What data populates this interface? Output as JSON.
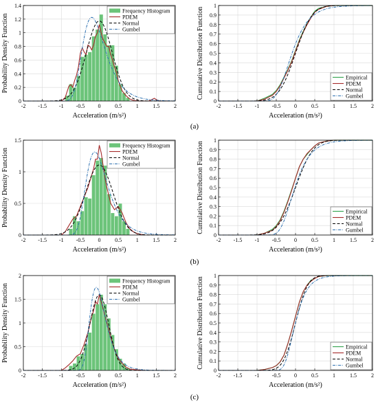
{
  "panels": [
    {
      "label": "(a)"
    },
    {
      "label": "(b)"
    },
    {
      "label": "(c)"
    }
  ],
  "colors": {
    "histogram_fill": "#6cc47a",
    "histogram_edge": "#4a9a58",
    "pdem": "#a52a2a",
    "normal": "#000000",
    "gumbel": "#2b6fb0",
    "empirical": "#3aa655",
    "grid": "#d9d9d9"
  },
  "chart_data": [
    {
      "type": "bar",
      "panel": "a",
      "xlabel": "Acceleration (m/s²)",
      "ylabel": "Probability Density Function",
      "xlim": [
        -2,
        2
      ],
      "ylim": [
        0,
        1.4
      ],
      "xticks": [
        "-2",
        "-1.5",
        "-1",
        "-0.5",
        "0",
        "0.5",
        "1",
        "1.5",
        "2"
      ],
      "yticks": [
        "0",
        "0.2",
        "0.4",
        "0.6",
        "0.8",
        "1",
        "1.2",
        "1.4"
      ],
      "grid": true,
      "legend_position": "top-right",
      "legend": [
        "Frequency Histogram",
        "PDEM",
        "Normal",
        "Gumbel"
      ],
      "histogram": {
        "bin_starts": [
          -0.9,
          -0.8,
          -0.7,
          -0.6,
          -0.5,
          -0.4,
          -0.3,
          -0.2,
          -0.1,
          0.0,
          0.1,
          0.2,
          0.3,
          0.4,
          0.5,
          0.6,
          0.7
        ],
        "bin_width": 0.1,
        "values": [
          0.08,
          0.25,
          0.2,
          0.37,
          0.65,
          0.68,
          0.72,
          0.95,
          1.05,
          1.27,
          0.98,
          0.82,
          0.82,
          0.52,
          0.25,
          0.12,
          0.05
        ]
      },
      "series": [
        {
          "name": "PDEM",
          "x": [
            -1.0,
            -0.9,
            -0.8,
            -0.75,
            -0.7,
            -0.65,
            -0.6,
            -0.55,
            -0.5,
            -0.45,
            -0.4,
            -0.35,
            -0.3,
            -0.25,
            -0.2,
            -0.15,
            -0.1,
            -0.05,
            0.0,
            0.05,
            0.1,
            0.15,
            0.2,
            0.25,
            0.3,
            0.35,
            0.4,
            0.45,
            0.5,
            0.55,
            0.6,
            0.7,
            0.8,
            0.9,
            1.0,
            1.3,
            1.45,
            1.5,
            1.6,
            1.8
          ],
          "y": [
            0.0,
            0.05,
            0.22,
            0.24,
            0.2,
            0.3,
            0.38,
            0.5,
            0.7,
            0.78,
            0.72,
            0.68,
            0.82,
            0.8,
            0.75,
            0.82,
            0.95,
            1.0,
            1.12,
            1.0,
            0.9,
            0.85,
            0.8,
            0.8,
            0.68,
            0.6,
            0.5,
            0.42,
            0.3,
            0.22,
            0.15,
            0.08,
            0.03,
            0.01,
            0.0,
            0.0,
            0.04,
            0.02,
            0.0,
            0.0
          ]
        },
        {
          "name": "Normal",
          "mean": 0.0,
          "std": 0.34
        },
        {
          "name": "Gumbel",
          "mode": -0.2,
          "scale": 0.3
        }
      ]
    },
    {
      "type": "line",
      "panel": "a",
      "xlabel": "Acceleration (m/s²)",
      "ylabel": "Cumulative Distribution Function",
      "xlim": [
        -2,
        2
      ],
      "ylim": [
        0,
        1
      ],
      "xticks": [
        "-2",
        "-1.5",
        "-1",
        "-0.5",
        "0",
        "0.5",
        "1",
        "1.5",
        "2"
      ],
      "yticks": [
        "0",
        "0.1",
        "0.2",
        "0.3",
        "0.4",
        "0.5",
        "0.6",
        "0.7",
        "0.8",
        "0.9",
        "1"
      ],
      "grid": true,
      "legend_position": "bottom-right",
      "legend": [
        "Empirical",
        "PDEM",
        "Normal",
        "Gumbel"
      ],
      "series": [
        {
          "name": "Empirical",
          "x": [
            -1.0,
            -0.8,
            -0.6,
            -0.5,
            -0.4,
            -0.3,
            -0.2,
            -0.1,
            0.0,
            0.1,
            0.2,
            0.3,
            0.4,
            0.5,
            0.6,
            0.8,
            1.0,
            1.5,
            2.0
          ],
          "y": [
            0.0,
            0.03,
            0.07,
            0.11,
            0.17,
            0.25,
            0.33,
            0.42,
            0.53,
            0.64,
            0.73,
            0.81,
            0.88,
            0.94,
            0.97,
            0.99,
            1.0,
            1.0,
            1.0
          ]
        },
        {
          "name": "PDEM",
          "x": [
            -1.0,
            -0.8,
            -0.6,
            -0.5,
            -0.4,
            -0.3,
            -0.2,
            -0.1,
            0.0,
            0.1,
            0.2,
            0.3,
            0.4,
            0.5,
            0.6,
            0.8,
            1.0,
            1.5,
            2.0
          ],
          "y": [
            0.0,
            0.02,
            0.06,
            0.1,
            0.16,
            0.24,
            0.32,
            0.41,
            0.52,
            0.63,
            0.72,
            0.8,
            0.87,
            0.93,
            0.96,
            0.99,
            1.0,
            1.0,
            1.0
          ]
        },
        {
          "name": "Normal",
          "mean": 0.0,
          "std": 0.34
        },
        {
          "name": "Gumbel",
          "mode": -0.2,
          "scale": 0.3
        }
      ]
    },
    {
      "type": "bar",
      "panel": "b",
      "xlabel": "Acceleration (m/s²)",
      "ylabel": "Probability Density Function",
      "xlim": [
        -2,
        2
      ],
      "ylim": [
        0,
        1.5
      ],
      "xticks": [
        "-2",
        "-1.5",
        "-1",
        "-0.5",
        "0",
        "0.5",
        "1",
        "1.5",
        "2"
      ],
      "yticks": [
        "0",
        "0.5",
        "1",
        "1.5"
      ],
      "grid": true,
      "legend_position": "top-right",
      "legend": [
        "Frequency Histogram",
        "PDEM",
        "Normal",
        "Gumbel"
      ],
      "histogram": {
        "bin_starts": [
          -0.8,
          -0.7,
          -0.6,
          -0.5,
          -0.4,
          -0.3,
          -0.2,
          -0.1,
          0.0,
          0.1,
          0.2,
          0.3,
          0.4,
          0.5,
          0.6,
          0.7
        ],
        "bin_width": 0.1,
        "values": [
          0.1,
          0.3,
          0.22,
          0.38,
          0.6,
          0.58,
          0.95,
          1.18,
          1.22,
          1.1,
          0.65,
          0.35,
          0.3,
          0.5,
          0.22,
          0.1
        ]
      },
      "series": [
        {
          "name": "PDEM",
          "x": [
            -1.0,
            -0.9,
            -0.8,
            -0.7,
            -0.6,
            -0.5,
            -0.4,
            -0.3,
            -0.2,
            -0.15,
            -0.1,
            -0.05,
            0.0,
            0.05,
            0.1,
            0.15,
            0.2,
            0.3,
            0.4,
            0.5,
            0.6,
            0.7,
            0.8,
            0.9,
            1.0,
            1.2
          ],
          "y": [
            0.0,
            0.05,
            0.15,
            0.25,
            0.3,
            0.45,
            0.6,
            0.75,
            0.95,
            1.05,
            1.2,
            1.2,
            1.42,
            1.3,
            1.1,
            0.9,
            0.75,
            0.5,
            0.4,
            0.45,
            0.35,
            0.2,
            0.1,
            0.05,
            0.02,
            0.0
          ]
        },
        {
          "name": "Normal",
          "mean": 0.0,
          "std": 0.36
        },
        {
          "name": "Gumbel",
          "mode": -0.12,
          "scale": 0.28
        }
      ]
    },
    {
      "type": "line",
      "panel": "b",
      "xlabel": "Acceleration (m/s²)",
      "ylabel": "Cumulative Distribution Function",
      "xlim": [
        -2,
        2
      ],
      "ylim": [
        0,
        1
      ],
      "xticks": [
        "-2",
        "-1.5",
        "-1",
        "-0.5",
        "0",
        "0.5",
        "1",
        "1.5",
        "2"
      ],
      "yticks": [
        "0",
        "0.1",
        "0.2",
        "0.3",
        "0.4",
        "0.5",
        "0.6",
        "0.7",
        "0.8",
        "0.9",
        "1"
      ],
      "grid": true,
      "legend_position": "bottom-right",
      "legend": [
        "Empirical",
        "PDEM",
        "Normal",
        "Gumbel"
      ],
      "series": [
        {
          "name": "Empirical",
          "x": [
            -1.0,
            -0.8,
            -0.6,
            -0.5,
            -0.4,
            -0.3,
            -0.2,
            -0.1,
            0.0,
            0.1,
            0.2,
            0.3,
            0.4,
            0.5,
            0.6,
            0.8,
            1.0,
            1.5,
            2.0
          ],
          "y": [
            0.0,
            0.02,
            0.06,
            0.1,
            0.16,
            0.25,
            0.36,
            0.48,
            0.6,
            0.72,
            0.8,
            0.85,
            0.9,
            0.94,
            0.97,
            0.99,
            1.0,
            1.0,
            1.0
          ]
        },
        {
          "name": "PDEM",
          "x": [
            -1.0,
            -0.8,
            -0.6,
            -0.5,
            -0.4,
            -0.3,
            -0.2,
            -0.1,
            0.0,
            0.1,
            0.2,
            0.3,
            0.4,
            0.5,
            0.6,
            0.8,
            1.0,
            1.5,
            2.0
          ],
          "y": [
            0.0,
            0.02,
            0.05,
            0.09,
            0.15,
            0.24,
            0.35,
            0.47,
            0.6,
            0.72,
            0.8,
            0.86,
            0.9,
            0.94,
            0.97,
            0.99,
            1.0,
            1.0,
            1.0
          ]
        },
        {
          "name": "Normal",
          "mean": 0.0,
          "std": 0.36
        },
        {
          "name": "Gumbel",
          "mode": -0.12,
          "scale": 0.28
        }
      ]
    },
    {
      "type": "bar",
      "panel": "c",
      "xlabel": "Acceleration (m/s²)",
      "ylabel": "Probability Density Function",
      "xlim": [
        -2,
        2
      ],
      "ylim": [
        0,
        2
      ],
      "xticks": [
        "-2",
        "-1.5",
        "-1",
        "-0.5",
        "0",
        "0.5",
        "1",
        "1.5",
        "2"
      ],
      "yticks": [
        "0",
        "0.5",
        "1",
        "1.5",
        "2"
      ],
      "grid": true,
      "legend_position": "top-right",
      "legend": [
        "Frequency Histogram",
        "PDEM",
        "Normal",
        "Gumbel"
      ],
      "histogram": {
        "bin_starts": [
          -0.8,
          -0.7,
          -0.6,
          -0.5,
          -0.4,
          -0.3,
          -0.2,
          -0.1,
          0.0,
          0.1,
          0.2,
          0.3,
          0.4,
          0.5,
          0.6,
          0.7
        ],
        "bin_width": 0.1,
        "values": [
          0.1,
          0.15,
          0.3,
          0.35,
          0.55,
          0.8,
          1.2,
          1.4,
          1.6,
          1.4,
          1.1,
          0.75,
          0.45,
          0.25,
          0.15,
          0.05
        ]
      },
      "series": [
        {
          "name": "PDEM",
          "x": [
            -1.0,
            -0.9,
            -0.8,
            -0.7,
            -0.6,
            -0.5,
            -0.4,
            -0.3,
            -0.2,
            -0.15,
            -0.1,
            -0.05,
            0.0,
            0.05,
            0.1,
            0.15,
            0.2,
            0.3,
            0.4,
            0.5,
            0.6,
            0.7,
            0.8,
            1.0,
            1.2
          ],
          "y": [
            0.0,
            0.05,
            0.12,
            0.2,
            0.3,
            0.35,
            0.55,
            0.8,
            1.15,
            1.25,
            1.45,
            1.4,
            1.6,
            1.45,
            1.3,
            1.15,
            1.0,
            0.7,
            0.45,
            0.25,
            0.15,
            0.07,
            0.03,
            0.01,
            0.0
          ]
        },
        {
          "name": "Normal",
          "mean": 0.0,
          "std": 0.25
        },
        {
          "name": "Gumbel",
          "mode": -0.08,
          "scale": 0.21
        }
      ]
    },
    {
      "type": "line",
      "panel": "c",
      "xlabel": "Acceleration (m/s²)",
      "ylabel": "Cumulative Distribution Function",
      "xlim": [
        -2,
        2
      ],
      "ylim": [
        0,
        1
      ],
      "xticks": [
        "-2",
        "-1.5",
        "-1",
        "-0.5",
        "0",
        "0.5",
        "1",
        "1.5",
        "2"
      ],
      "yticks": [
        "0",
        "0.1",
        "0.2",
        "0.3",
        "0.4",
        "0.5",
        "0.6",
        "0.7",
        "0.8",
        "0.9",
        "1"
      ],
      "grid": true,
      "legend_position": "bottom-right",
      "legend": [
        "Empirical",
        "PDEM",
        "Normal",
        "Gumbel"
      ],
      "series": [
        {
          "name": "Empirical",
          "x": [
            -1.0,
            -0.8,
            -0.6,
            -0.5,
            -0.4,
            -0.3,
            -0.2,
            -0.1,
            0.0,
            0.1,
            0.2,
            0.3,
            0.4,
            0.5,
            0.6,
            0.8,
            1.0,
            1.5,
            2.0
          ],
          "y": [
            0.0,
            0.01,
            0.03,
            0.05,
            0.09,
            0.16,
            0.28,
            0.42,
            0.57,
            0.72,
            0.83,
            0.9,
            0.95,
            0.97,
            0.99,
            1.0,
            1.0,
            1.0,
            1.0
          ]
        },
        {
          "name": "PDEM",
          "x": [
            -1.0,
            -0.8,
            -0.6,
            -0.5,
            -0.4,
            -0.3,
            -0.2,
            -0.1,
            0.0,
            0.1,
            0.2,
            0.3,
            0.4,
            0.5,
            0.6,
            0.8,
            1.0,
            1.5,
            2.0
          ],
          "y": [
            0.0,
            0.01,
            0.03,
            0.05,
            0.09,
            0.16,
            0.28,
            0.42,
            0.57,
            0.72,
            0.83,
            0.9,
            0.94,
            0.97,
            0.99,
            1.0,
            1.0,
            1.0,
            1.0
          ]
        },
        {
          "name": "Normal",
          "mean": 0.0,
          "std": 0.25
        },
        {
          "name": "Gumbel",
          "mode": -0.08,
          "scale": 0.21
        }
      ]
    }
  ]
}
